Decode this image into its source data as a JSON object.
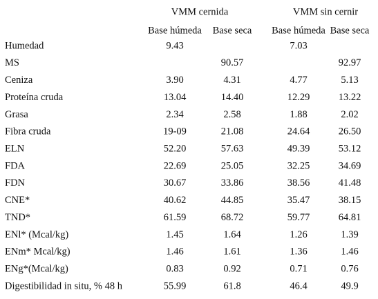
{
  "table": {
    "groups": [
      "VMM cernida",
      "VMM sin cernir"
    ],
    "columns": [
      "Base húmeda",
      "Base seca",
      "Base húmeda",
      "Base seca"
    ],
    "rows": [
      [
        "Humedad",
        "9.43",
        null,
        "7.03",
        null
      ],
      [
        "MS",
        null,
        "90.57",
        null,
        "92.97"
      ],
      [
        "Ceniza",
        "3.90",
        "4.31",
        "4.77",
        "5.13"
      ],
      [
        "Proteína cruda",
        "13.04",
        "14.40",
        "12.29",
        "13.22"
      ],
      [
        "Grasa",
        "2.34",
        "2.58",
        "1.88",
        "2.02"
      ],
      [
        "Fibra cruda",
        "19-09",
        "21.08",
        "24.64",
        "26.50"
      ],
      [
        "ELN",
        "52.20",
        "57.63",
        "49.39",
        "53.12"
      ],
      [
        "FDA",
        "22.69",
        "25.05",
        "32.25",
        "34.69"
      ],
      [
        "FDN",
        "30.67",
        "33.86",
        "38.56",
        "41.48"
      ],
      [
        "CNE*",
        "40.62",
        "44.85",
        "35.47",
        "38.15"
      ],
      [
        "TND*",
        "61.59",
        "68.72",
        "59.77",
        "64.81"
      ],
      [
        "ENl* (Mcal/kg)",
        "1.45",
        "1.64",
        "1.26",
        "1.39"
      ],
      [
        "ENm* Mcal/kg)",
        "1.46",
        "1.61",
        "1.36",
        "1.46"
      ],
      [
        "ENg*(Mcal/kg)",
        "0.83",
        "0.92",
        "0.71",
        "0.76"
      ],
      [
        "Digestibilidad in situ, % 48 h",
        "55.99",
        "61.8",
        "46.4",
        "49.9"
      ]
    ]
  }
}
